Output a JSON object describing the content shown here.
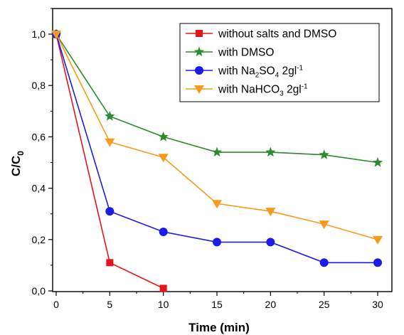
{
  "chart_data": {
    "type": "line",
    "xlabel": "Time (min)",
    "ylabel": {
      "main": "C/C",
      "sub": "0"
    },
    "xlim": [
      0,
      31.5
    ],
    "ylim": [
      0,
      1.1
    ],
    "x_ticks": [
      0,
      5,
      10,
      15,
      20,
      25,
      30
    ],
    "x_tick_labels": [
      "0",
      "5",
      "10",
      "15",
      "20",
      "25",
      "30"
    ],
    "y_ticks": [
      0,
      0.2,
      0.4,
      0.6,
      0.8,
      1.0
    ],
    "y_tick_labels": [
      "0,0",
      "0,2",
      "0,4",
      "0,6",
      "0,8",
      "1,0"
    ],
    "grid": false,
    "legend_position": "top-right",
    "series": [
      {
        "name": "without salts and DMSO",
        "name_parts": [
          {
            "t": "without salts and DMSO"
          }
        ],
        "color": "#e8141c",
        "marker": "square",
        "x": [
          0,
          5,
          10
        ],
        "y": [
          1.0,
          0.11,
          0.01
        ]
      },
      {
        "name": "with DMSO",
        "name_parts": [
          {
            "t": "with DMSO"
          }
        ],
        "color": "#2e8a2e",
        "marker": "star",
        "x": [
          0,
          5,
          10,
          15,
          20,
          25,
          30
        ],
        "y": [
          1.0,
          0.68,
          0.6,
          0.54,
          0.54,
          0.53,
          0.5
        ]
      },
      {
        "name": "with Na2SO4 2gl-1",
        "name_parts": [
          {
            "t": "with Na"
          },
          {
            "t": "2",
            "s": "sub"
          },
          {
            "t": "SO"
          },
          {
            "t": "4",
            "s": "sub"
          },
          {
            "t": "   2gl"
          },
          {
            "t": "-1",
            "s": "sup"
          }
        ],
        "color": "#1c1ce8",
        "marker": "circle",
        "x": [
          0,
          5,
          10,
          15,
          20,
          25,
          30
        ],
        "y": [
          1.0,
          0.31,
          0.23,
          0.19,
          0.19,
          0.11,
          0.11
        ]
      },
      {
        "name": "with NaHCO3 2gl-1",
        "name_parts": [
          {
            "t": "with NaHCO"
          },
          {
            "t": "3",
            "s": "sub"
          },
          {
            "t": " 2gl"
          },
          {
            "t": "-1",
            "s": "sup"
          }
        ],
        "color": "#f59a1c",
        "marker": "triangle-down",
        "x": [
          0,
          5,
          10,
          15,
          20,
          25,
          30
        ],
        "y": [
          1.0,
          0.58,
          0.52,
          0.34,
          0.31,
          0.26,
          0.2
        ]
      }
    ]
  }
}
